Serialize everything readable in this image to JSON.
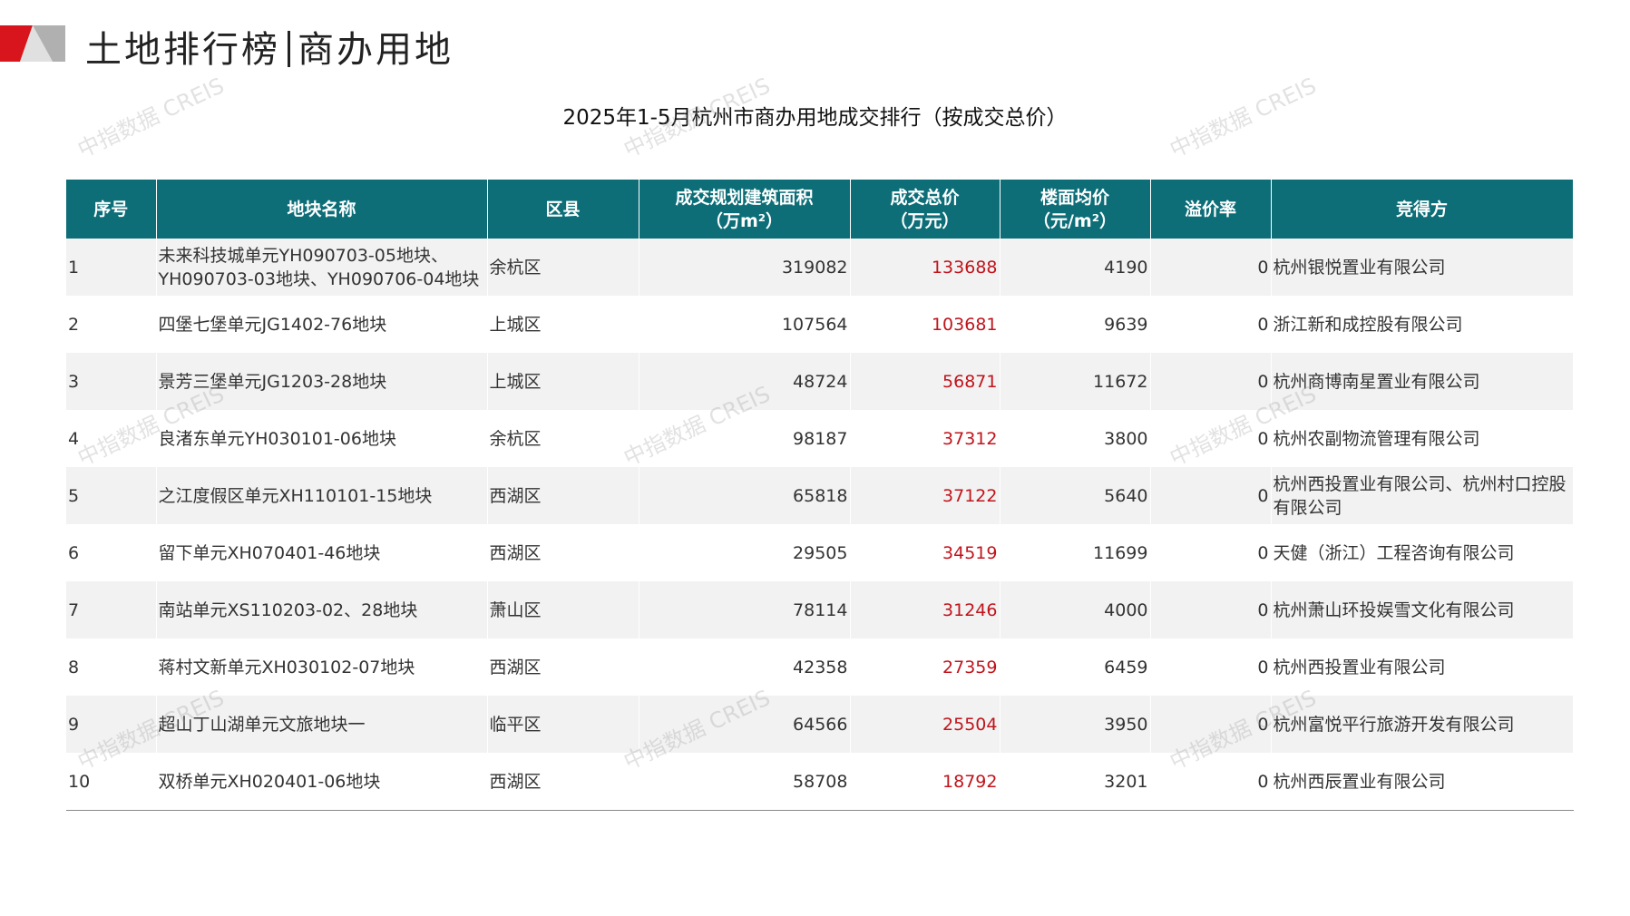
{
  "header": {
    "title": "土地排行榜",
    "subtitle": "商办用地"
  },
  "watermark": "中指数据 CREIS",
  "table": {
    "title": "2025年1-5月杭州市商办用地成交排行（按成交总价）",
    "columns": [
      [
        "序号"
      ],
      [
        "地块名称"
      ],
      [
        "区县"
      ],
      [
        "成交规划建筑面积",
        "（万m²）"
      ],
      [
        "成交总价",
        "（万元）"
      ],
      [
        "楼面均价",
        "（元/m²）"
      ],
      [
        "溢价率"
      ],
      [
        "竞得方"
      ]
    ],
    "rows": [
      [
        "1",
        "未来科技城单元YH090703-05地块、YH090703-03地块、YH090706-04地块",
        "余杭区",
        "319082",
        "133688",
        "4190",
        "0",
        "杭州银悦置业有限公司"
      ],
      [
        "2",
        "四堡七堡单元JG1402-76地块",
        "上城区",
        "107564",
        "103681",
        "9639",
        "0",
        "浙江新和成控股有限公司"
      ],
      [
        "3",
        "景芳三堡单元JG1203-28地块",
        "上城区",
        "48724",
        "56871",
        "11672",
        "0",
        "杭州商博南星置业有限公司"
      ],
      [
        "4",
        "良渚东单元YH030101-06地块",
        "余杭区",
        "98187",
        "37312",
        "3800",
        "0",
        "杭州农副物流管理有限公司"
      ],
      [
        "5",
        "之江度假区单元XH110101-15地块",
        "西湖区",
        "65818",
        "37122",
        "5640",
        "0",
        "杭州西投置业有限公司、杭州村口控股有限公司"
      ],
      [
        "6",
        "留下单元XH070401-46地块",
        "西湖区",
        "29505",
        "34519",
        "11699",
        "0",
        "天健（浙江）工程咨询有限公司"
      ],
      [
        "7",
        "南站单元XS110203-02、28地块",
        "萧山区",
        "78114",
        "31246",
        "4000",
        "0",
        "杭州萧山环投娱雪文化有限公司"
      ],
      [
        "8",
        "蒋村文新单元XH030102-07地块",
        "西湖区",
        "42358",
        "27359",
        "6459",
        "0",
        "杭州西投置业有限公司"
      ],
      [
        "9",
        "超山丁山湖单元文旅地块一",
        "临平区",
        "64566",
        "25504",
        "3950",
        "0",
        "杭州富悦平行旅游开发有限公司"
      ],
      [
        "10",
        "双桥单元XH020401-06地块",
        "西湖区",
        "58708",
        "18792",
        "3201",
        "0",
        "杭州西辰置业有限公司"
      ]
    ]
  }
}
